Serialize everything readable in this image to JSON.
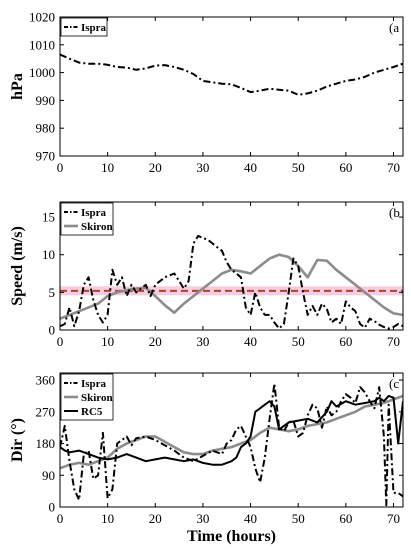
{
  "chart_data": [
    {
      "type": "line",
      "panel_label": "(a",
      "ylabel": "hPa",
      "ylim": [
        970,
        1020
      ],
      "yticks": [
        970,
        980,
        990,
        1000,
        1010,
        1020
      ],
      "xlim": [
        0,
        72
      ],
      "xticks": [
        0,
        10,
        20,
        30,
        40,
        50,
        60,
        70
      ],
      "legend_position": "top-left",
      "series": [
        {
          "name": "Ispra",
          "color": "#000000",
          "style": "dashdot",
          "x": [
            0,
            2,
            4,
            6,
            8,
            10,
            12,
            14,
            16,
            18,
            20,
            22,
            24,
            26,
            28,
            30,
            32,
            34,
            36,
            38,
            40,
            42,
            44,
            46,
            48,
            50,
            52,
            54,
            56,
            58,
            60,
            62,
            64,
            66,
            68,
            70,
            72
          ],
          "y": [
            1006.5,
            1005,
            1003.6,
            1003.2,
            1003.2,
            1002.8,
            1002,
            1001.8,
            1001,
            1001.5,
            1002.5,
            1002.7,
            1002,
            1001,
            999.5,
            997,
            996.5,
            996,
            995.8,
            994.5,
            993,
            993.5,
            994.2,
            993.8,
            993.5,
            992,
            992.5,
            993.5,
            995,
            996,
            997,
            997.5,
            998.5,
            1000,
            1001,
            1002,
            1003.2
          ]
        }
      ]
    },
    {
      "type": "line",
      "panel_label": "(b",
      "ylabel": "Speed (m/s)",
      "ylim": [
        0,
        17
      ],
      "yticks": [
        0,
        5,
        10,
        15
      ],
      "xlim": [
        0,
        72
      ],
      "xticks": [
        0,
        10,
        20,
        30,
        40,
        50,
        60,
        70
      ],
      "legend_position": "top-left",
      "reference_line": {
        "y": 5.2,
        "color": "#b8401a",
        "style": "dashed",
        "band": [
          4.6,
          5.8
        ],
        "band_color": "#f6cce4"
      },
      "series": [
        {
          "name": "Ispra",
          "color": "#000000",
          "style": "dashdot",
          "x": [
            0,
            1,
            2,
            3,
            4,
            5,
            6,
            7,
            8,
            9,
            10,
            11,
            12,
            13,
            14,
            15,
            16,
            17,
            18,
            19,
            20,
            22,
            24,
            26,
            27,
            28,
            29,
            30,
            31,
            32,
            33,
            34,
            35,
            36,
            37,
            38,
            39,
            40,
            41,
            42,
            43,
            44,
            45,
            46,
            47,
            48,
            49,
            50,
            51,
            52,
            53,
            54,
            55,
            56,
            57,
            58,
            59,
            60,
            61,
            62,
            63,
            64,
            65,
            66,
            67,
            68,
            69,
            70,
            71,
            72
          ],
          "y": [
            0.5,
            0.8,
            3,
            0.5,
            2.5,
            6,
            7,
            4,
            2,
            1,
            2,
            8,
            6,
            7,
            4.5,
            6,
            5,
            5.5,
            6,
            4.5,
            6,
            7,
            7.5,
            5.5,
            6.5,
            11.5,
            12.5,
            12.2,
            12,
            11.5,
            11,
            10.5,
            9,
            8,
            7.5,
            7,
            3,
            2,
            5,
            3,
            2,
            2,
            1,
            0.2,
            0.8,
            5,
            9.5,
            8.5,
            5,
            2,
            3.2,
            2,
            3.5,
            2.8,
            1,
            1.5,
            0.8,
            3.8,
            3,
            2.5,
            0.8,
            0.3,
            1.5,
            1.2,
            0.7,
            0.4,
            0.2,
            0.4,
            0.8,
            0.5
          ]
        },
        {
          "name": "Skiron",
          "color": "#8c8c8c",
          "style": "solid",
          "x": [
            0,
            2,
            4,
            6,
            8,
            10,
            12,
            14,
            16,
            18,
            20,
            22,
            24,
            26,
            28,
            30,
            32,
            34,
            36,
            38,
            40,
            42,
            44,
            46,
            48,
            50,
            52,
            54,
            56,
            58,
            60,
            62,
            64,
            66,
            68,
            70,
            72
          ],
          "y": [
            1.5,
            2,
            2.5,
            3,
            3.5,
            4.5,
            5,
            5.3,
            5.5,
            5.6,
            4.5,
            3.3,
            2.3,
            3.5,
            4.5,
            5.5,
            6.5,
            7.5,
            8,
            7.8,
            7.5,
            8.5,
            9.5,
            10,
            9.7,
            8.5,
            7,
            9.3,
            9.2,
            8,
            7,
            6,
            5,
            4,
            3,
            2.2,
            2
          ]
        }
      ]
    },
    {
      "type": "line",
      "panel_label": "(c",
      "xlabel": "Time (hours)",
      "ylabel": "Dir (°)",
      "ylim": [
        0,
        380
      ],
      "yticks": [
        0,
        90,
        180,
        270,
        360
      ],
      "xlim": [
        0,
        72
      ],
      "xticks": [
        0,
        10,
        20,
        30,
        40,
        50,
        60,
        70
      ],
      "legend_position": "top-left",
      "series": [
        {
          "name": "Ispra",
          "color": "#000000",
          "style": "dashdot",
          "x": [
            0,
            1,
            2,
            3,
            4,
            5,
            6,
            7,
            8,
            9,
            10,
            11,
            12,
            13,
            14,
            15,
            16,
            18,
            20,
            22,
            24,
            26,
            28,
            30,
            32,
            34,
            35,
            36,
            37,
            38,
            39,
            40,
            41,
            42,
            43,
            44,
            45,
            46,
            47,
            48,
            49,
            50,
            51,
            52,
            53,
            54,
            55,
            56,
            57,
            58,
            59,
            60,
            61,
            62,
            63,
            64,
            65,
            66,
            67,
            68,
            68.5,
            69,
            70,
            71,
            72
          ],
          "y": [
            170,
            230,
            130,
            50,
            20,
            150,
            160,
            80,
            90,
            210,
            25,
            50,
            180,
            190,
            200,
            175,
            195,
            200,
            190,
            175,
            160,
            140,
            130,
            145,
            160,
            150,
            180,
            190,
            220,
            230,
            200,
            170,
            110,
            70,
            140,
            250,
            350,
            225,
            215,
            240,
            245,
            200,
            210,
            260,
            290,
            280,
            225,
            285,
            260,
            270,
            300,
            320,
            310,
            295,
            340,
            325,
            300,
            280,
            340,
            200,
            5,
            290,
            40,
            40,
            30
          ]
        },
        {
          "name": "Skiron",
          "color": "#8c8c8c",
          "style": "solid",
          "x": [
            0,
            2,
            4,
            6,
            8,
            10,
            12,
            14,
            16,
            18,
            20,
            22,
            24,
            26,
            28,
            30,
            32,
            34,
            36,
            38,
            40,
            42,
            44,
            46,
            48,
            50,
            52,
            54,
            56,
            58,
            60,
            62,
            64,
            66,
            68,
            70,
            72
          ],
          "y": [
            110,
            120,
            125,
            120,
            130,
            140,
            165,
            180,
            190,
            200,
            200,
            185,
            170,
            155,
            150,
            150,
            160,
            165,
            170,
            180,
            190,
            210,
            225,
            220,
            215,
            220,
            230,
            235,
            240,
            250,
            260,
            270,
            285,
            290,
            295,
            305,
            315
          ]
        },
        {
          "name": "RC5",
          "color": "#000000",
          "style": "solid",
          "x": [
            0,
            1,
            2,
            4,
            6,
            8,
            10,
            12,
            14,
            16,
            18,
            20,
            22,
            24,
            26,
            28,
            30,
            32,
            34,
            36,
            37,
            38,
            39,
            40,
            41,
            42,
            43,
            44,
            45,
            46,
            48,
            50,
            52,
            54,
            56,
            57,
            58,
            60,
            62,
            64,
            66,
            67,
            68,
            69,
            70,
            71,
            72
          ],
          "y": [
            170,
            160,
            155,
            160,
            150,
            140,
            135,
            140,
            150,
            140,
            130,
            135,
            140,
            135,
            130,
            135,
            125,
            120,
            120,
            130,
            140,
            170,
            180,
            200,
            270,
            280,
            290,
            300,
            285,
            220,
            240,
            245,
            250,
            240,
            270,
            300,
            285,
            300,
            290,
            295,
            300,
            310,
            300,
            315,
            310,
            180,
            300
          ]
        }
      ]
    }
  ]
}
